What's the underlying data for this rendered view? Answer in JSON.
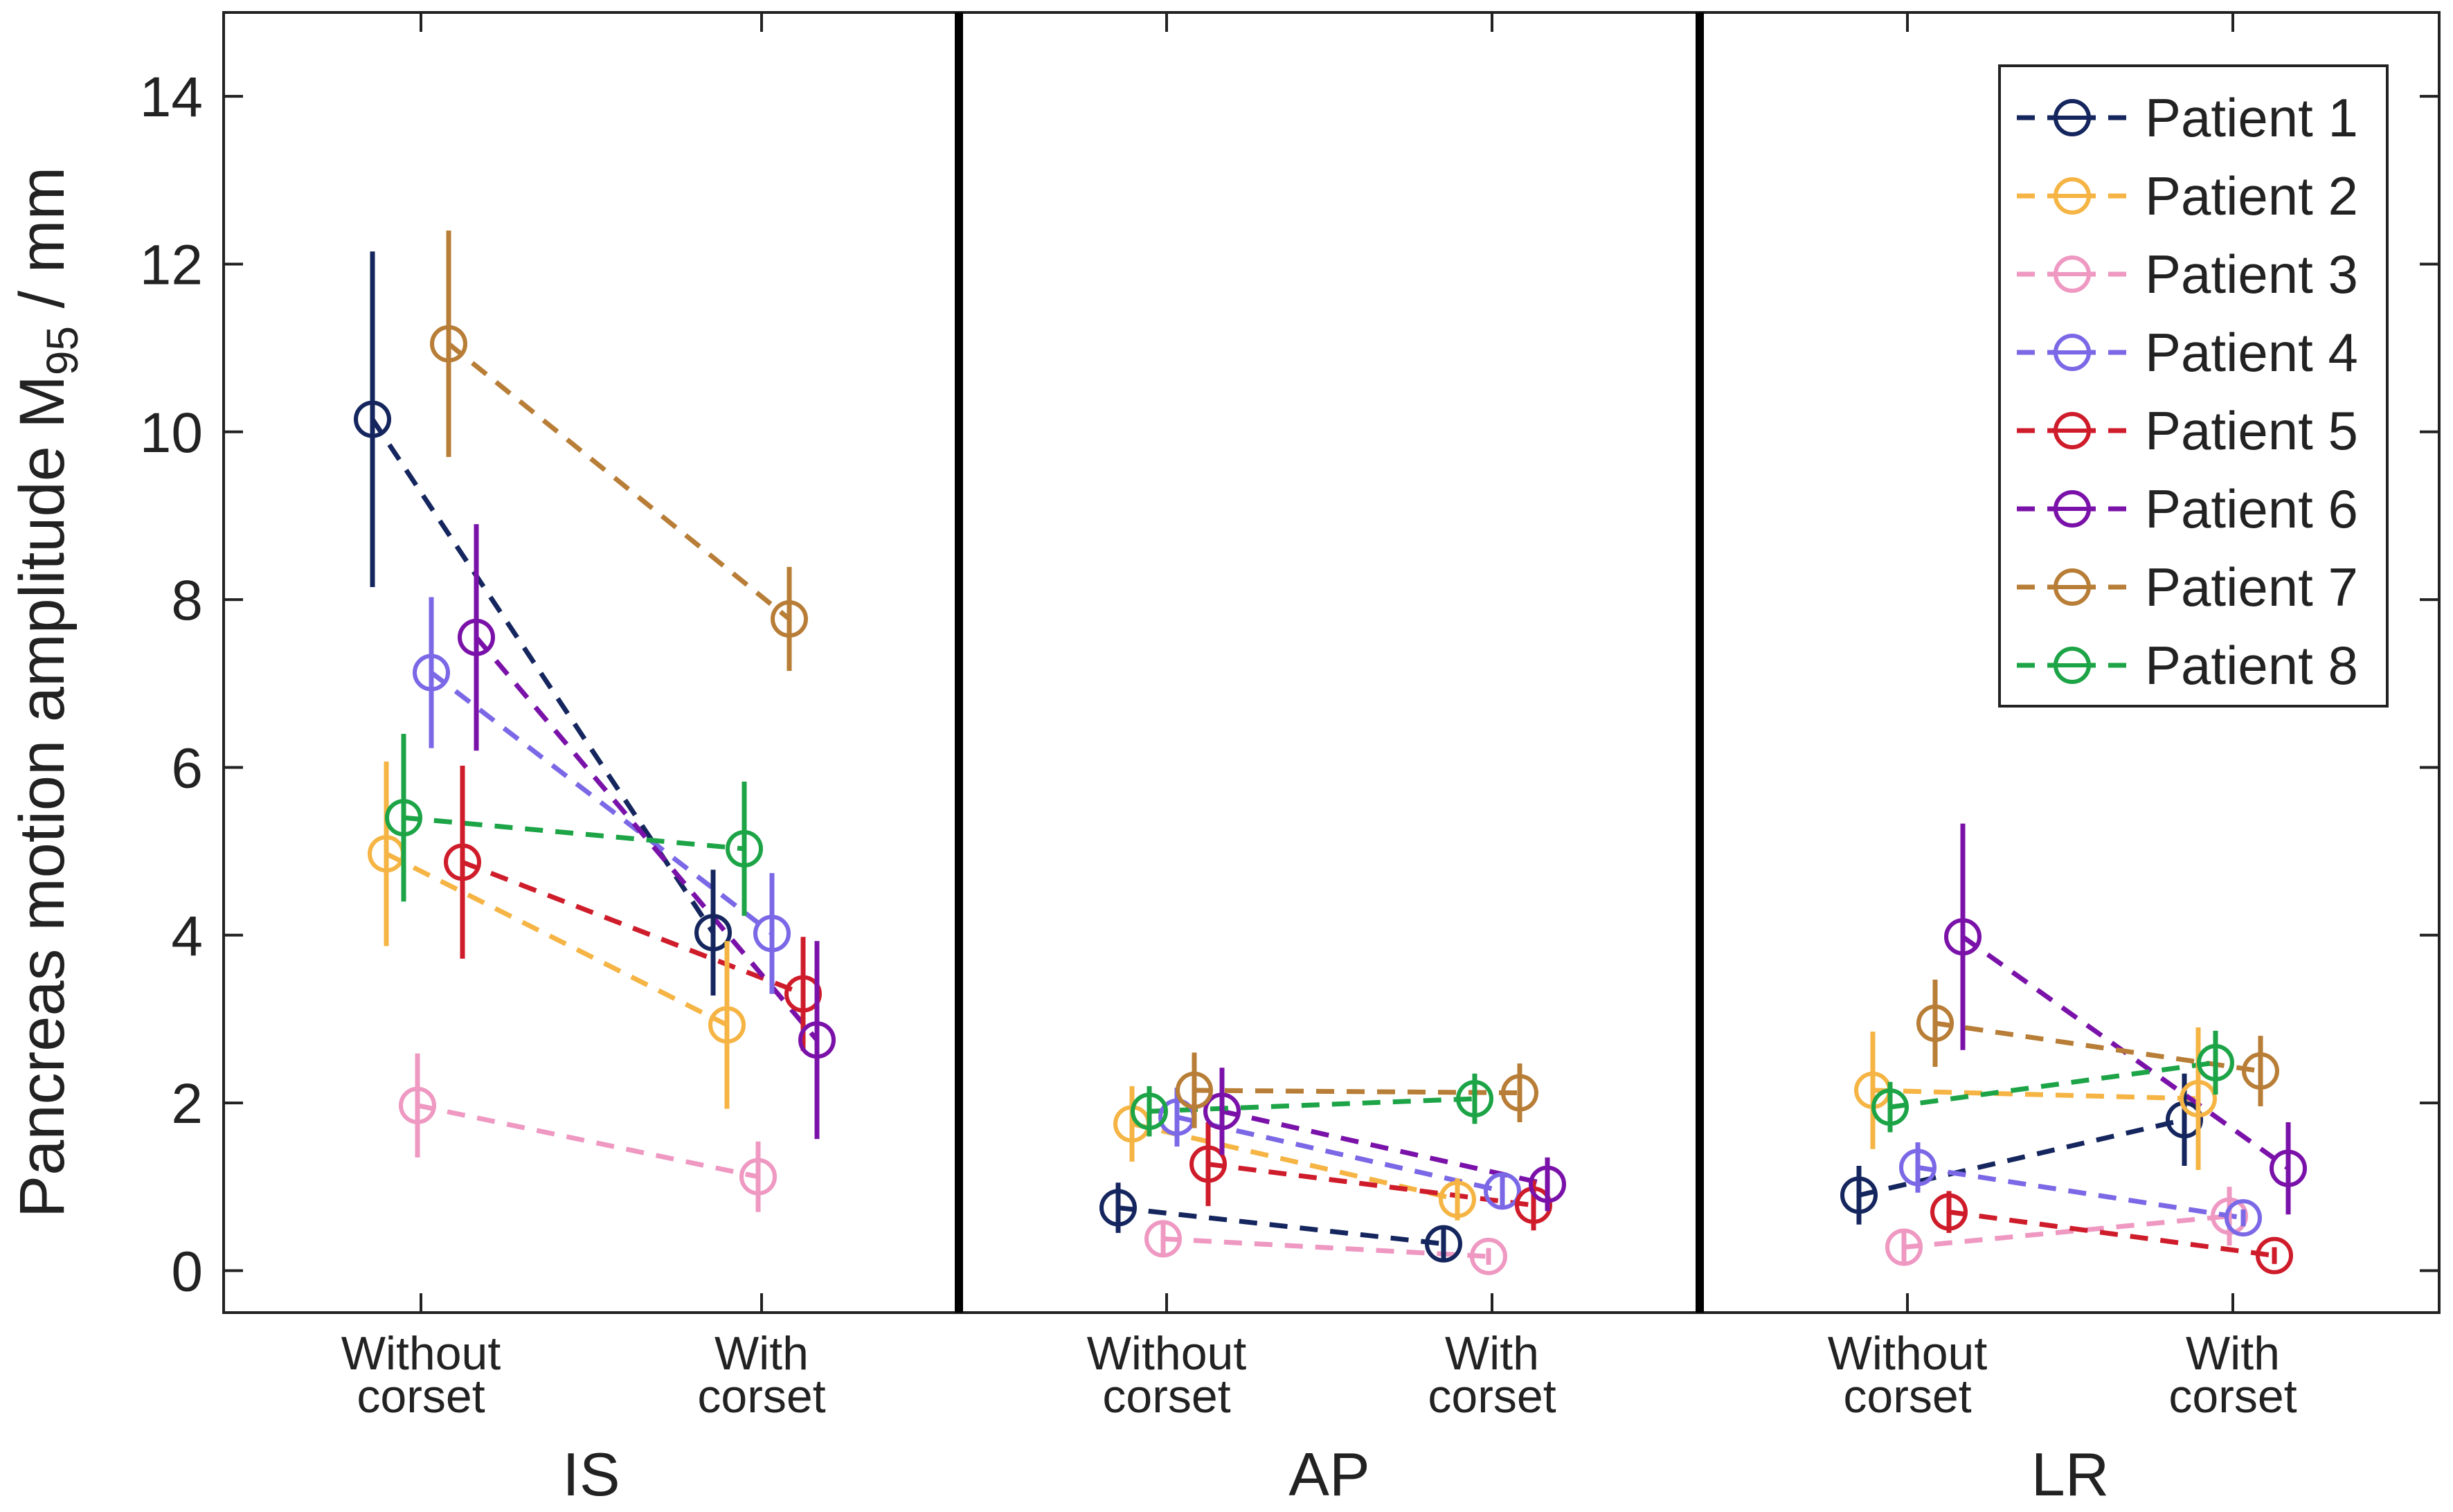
{
  "chart_data": {
    "type": "scatter",
    "ylabel": {
      "main": "Pancreas motion amplitude M",
      "subscript": "95",
      "unit": " / mm"
    },
    "ylim": [
      -0.5,
      15
    ],
    "yticks": [
      0,
      2,
      4,
      6,
      8,
      10,
      12,
      14
    ],
    "categories": [
      [
        "Without",
        "corset"
      ],
      [
        "With",
        "corset"
      ]
    ],
    "panels": [
      {
        "label": "IS"
      },
      {
        "label": "AP"
      },
      {
        "label": "LR"
      }
    ],
    "legend_position": "top-right",
    "series": [
      {
        "name": "Patient 1",
        "color": "#15265e",
        "values": [
          [
            10.15,
            4.03
          ],
          [
            0.75,
            0.32
          ],
          [
            0.9,
            1.8
          ]
        ],
        "errors": [
          [
            2.0,
            0.75
          ],
          [
            0.3,
            0.18
          ],
          [
            0.35,
            0.55
          ]
        ]
      },
      {
        "name": "Patient 2",
        "color": "#f5b443",
        "values": [
          [
            4.97,
            2.93
          ],
          [
            1.75,
            0.85
          ],
          [
            2.15,
            2.05
          ]
        ],
        "errors": [
          [
            1.1,
            1.0
          ],
          [
            0.45,
            0.25
          ],
          [
            0.7,
            0.85
          ]
        ]
      },
      {
        "name": "Patient 3",
        "color": "#ee98c2",
        "values": [
          [
            1.97,
            1.12
          ],
          [
            0.38,
            0.17
          ],
          [
            0.28,
            0.65
          ]
        ],
        "errors": [
          [
            0.62,
            0.42
          ],
          [
            0.22,
            0.1
          ],
          [
            0.2,
            0.35
          ]
        ]
      },
      {
        "name": "Patient 4",
        "color": "#7b68e6",
        "values": [
          [
            7.13,
            4.02
          ],
          [
            1.83,
            0.95
          ],
          [
            1.23,
            0.63
          ]
        ],
        "errors": [
          [
            0.9,
            0.72
          ],
          [
            0.35,
            0.2
          ],
          [
            0.3,
            0.1
          ]
        ]
      },
      {
        "name": "Patient 5",
        "color": "#cf1c2b",
        "values": [
          [
            4.87,
            3.3
          ],
          [
            1.27,
            0.78
          ],
          [
            0.7,
            0.18
          ]
        ],
        "errors": [
          [
            1.15,
            0.68
          ],
          [
            0.5,
            0.3
          ],
          [
            0.25,
            0.1
          ]
        ]
      },
      {
        "name": "Patient 6",
        "color": "#7a12a9",
        "values": [
          [
            7.55,
            2.75
          ],
          [
            1.9,
            1.03
          ],
          [
            3.98,
            1.22
          ]
        ],
        "errors": [
          [
            1.35,
            1.18
          ],
          [
            0.52,
            0.32
          ],
          [
            1.35,
            0.55
          ]
        ]
      },
      {
        "name": "Patient 7",
        "color": "#b87d36",
        "values": [
          [
            11.05,
            7.77
          ],
          [
            2.15,
            2.12
          ],
          [
            2.95,
            2.38
          ]
        ],
        "errors": [
          [
            1.35,
            0.62
          ],
          [
            0.45,
            0.35
          ],
          [
            0.52,
            0.42
          ]
        ]
      },
      {
        "name": "Patient 8",
        "color": "#1ca447",
        "values": [
          [
            5.4,
            5.03
          ],
          [
            1.9,
            2.05
          ],
          [
            1.95,
            2.48
          ]
        ],
        "errors": [
          [
            1.0,
            0.8
          ],
          [
            0.3,
            0.3
          ],
          [
            0.3,
            0.38
          ]
        ]
      }
    ]
  }
}
